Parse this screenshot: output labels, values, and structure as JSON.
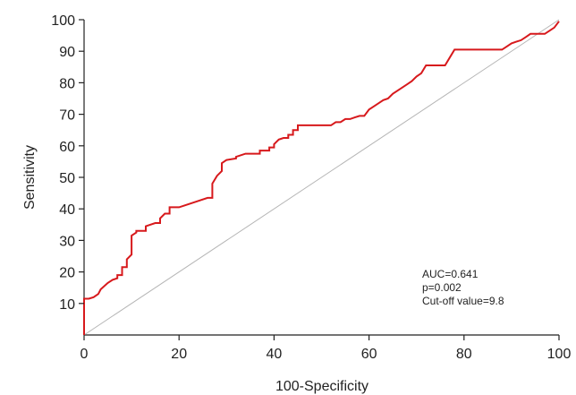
{
  "chart_data": {
    "type": "line",
    "xlabel": "100-Specificity",
    "ylabel": "Sensitivity",
    "xlim": [
      0,
      100
    ],
    "ylim": [
      0,
      100
    ],
    "xticks": [
      0,
      20,
      40,
      60,
      80,
      100
    ],
    "yticks": [
      10,
      20,
      30,
      40,
      50,
      60,
      70,
      80,
      90,
      100
    ],
    "grid": false,
    "reference_line": {
      "x": [
        0,
        100
      ],
      "y": [
        0,
        100
      ],
      "color": "#b5b5b5"
    },
    "series": [
      {
        "color": "#d7191c",
        "x": [
          0,
          0,
          1,
          2,
          3,
          3.5,
          5,
          6,
          7,
          7,
          8,
          8,
          9,
          9,
          10,
          10,
          11,
          11,
          13,
          13,
          15,
          16,
          16,
          17,
          18,
          18,
          20,
          21,
          24,
          26,
          27,
          27,
          28,
          29,
          29,
          30,
          32,
          32,
          34,
          37,
          37,
          39,
          39,
          40,
          40,
          41,
          42,
          43,
          43,
          44,
          44,
          45,
          45,
          46,
          47,
          48,
          49,
          50,
          51,
          52,
          53,
          54,
          55,
          56,
          57,
          58,
          59,
          60,
          61,
          62,
          63,
          64,
          65,
          66,
          67,
          68,
          69,
          70,
          71,
          72,
          73,
          74,
          75,
          76,
          77,
          78,
          79,
          80,
          81,
          82,
          83,
          84,
          85,
          86,
          87,
          88,
          89,
          90,
          91,
          92,
          93,
          94,
          95,
          96,
          97,
          98,
          99,
          100
        ],
        "y": [
          0,
          11.5,
          11.5,
          12,
          13,
          14.5,
          16.5,
          17.5,
          18,
          19,
          19,
          21.5,
          21.5,
          24,
          25.5,
          31.5,
          32.5,
          33,
          33,
          34.5,
          35.5,
          35.5,
          37,
          38.5,
          38.5,
          40.5,
          40.5,
          41,
          42.5,
          43.5,
          43.5,
          48,
          50.5,
          52,
          54.5,
          55.5,
          56,
          56.5,
          57.5,
          57.5,
          58.5,
          58.5,
          59.5,
          59.5,
          60.5,
          62,
          62.5,
          62.5,
          63.5,
          63.5,
          65,
          65,
          66.5,
          66.5,
          66.5,
          66.5,
          66.5,
          66.5,
          66.5,
          66.5,
          67.5,
          67.5,
          68.5,
          68.5,
          69,
          69.5,
          69.5,
          71.5,
          72.5,
          73.5,
          74.5,
          75,
          76.5,
          77.5,
          78.5,
          79.5,
          80.5,
          82,
          83,
          85.5,
          85.5,
          85.5,
          85.5,
          85.5,
          88,
          90.5,
          90.5,
          90.5,
          90.5,
          90.5,
          90.5,
          90.5,
          90.5,
          90.5,
          90.5,
          90.5,
          91.5,
          92.5,
          93,
          93.5,
          94.5,
          95.5,
          95.5,
          95.5,
          95.5,
          96.5,
          97.5,
          99.5
        ]
      }
    ],
    "annotations": [
      "AUC=0.641",
      "p=0.002",
      "Cut-off value=9.8"
    ]
  }
}
